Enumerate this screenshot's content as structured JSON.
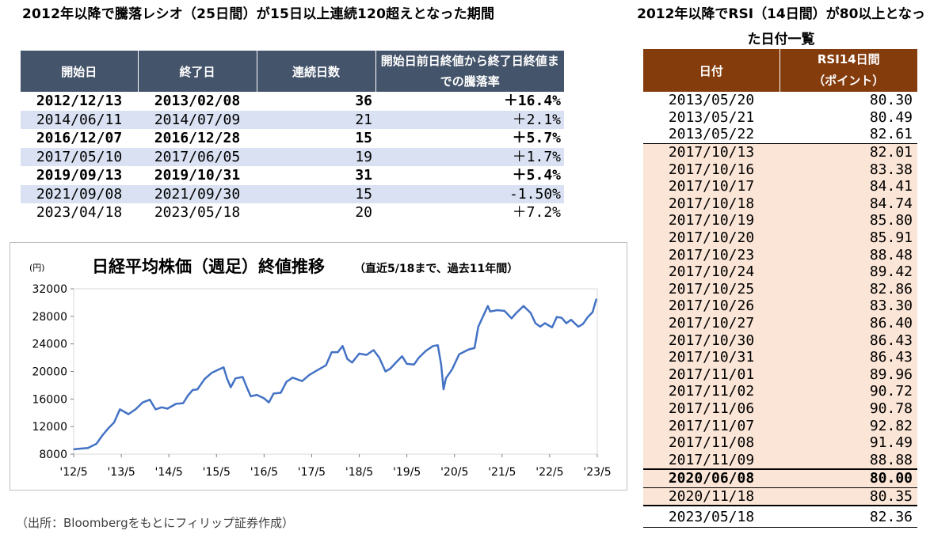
{
  "left_title": "2012年以降で騰落レシオ（25日間）が15日以上連続120超えとなった期間",
  "streak_table": {
    "headers": [
      "開始日",
      "終了日",
      "連続日数",
      "開始日前日終値から終了日終値までの騰落率"
    ],
    "rows": [
      {
        "start": "2012/12/13",
        "end": "2013/02/08",
        "days": "36",
        "change": "＋16.4%",
        "bold": true,
        "shade": false
      },
      {
        "start": "2014/06/11",
        "end": "2014/07/09",
        "days": "21",
        "change": "＋2.1%",
        "bold": false,
        "shade": true
      },
      {
        "start": "2016/12/07",
        "end": "2016/12/28",
        "days": "15",
        "change": "＋5.7%",
        "bold": true,
        "shade": false
      },
      {
        "start": "2017/05/10",
        "end": "2017/06/05",
        "days": "19",
        "change": "＋1.7%",
        "bold": false,
        "shade": true
      },
      {
        "start": "2019/09/13",
        "end": "2019/10/31",
        "days": "31",
        "change": "＋5.4%",
        "bold": true,
        "shade": false
      },
      {
        "start": "2021/09/08",
        "end": "2021/09/30",
        "days": "15",
        "change": "-1.50%",
        "bold": false,
        "shade": true
      },
      {
        "start": "2023/04/18",
        "end": "2023/05/18",
        "days": "20",
        "change": "＋7.2%",
        "bold": false,
        "shade": false
      }
    ]
  },
  "chart_data": {
    "type": "line",
    "title": "日経平均株価（週足）終値推移",
    "subtitle": "（直近5/18まで、過去11年間）",
    "ylabel": "(円)",
    "ylim": [
      8000,
      32000
    ],
    "yticks": [
      "8000",
      "12000",
      "16000",
      "20000",
      "24000",
      "28000",
      "32000"
    ],
    "xticks": [
      "'12/5",
      "'13/5",
      "'14/5",
      "'15/5",
      "'16/5",
      "'17/5",
      "'18/5",
      "'19/5",
      "'20/5",
      "'21/5",
      "'22/5",
      "'23/5"
    ],
    "x": [
      2012.4,
      2012.55,
      2012.7,
      2012.88,
      2013.0,
      2013.12,
      2013.25,
      2013.37,
      2013.45,
      2013.55,
      2013.7,
      2013.85,
      2014.0,
      2014.12,
      2014.25,
      2014.37,
      2014.55,
      2014.7,
      2014.8,
      2014.9,
      2015.0,
      2015.15,
      2015.3,
      2015.45,
      2015.55,
      2015.62,
      2015.7,
      2015.8,
      2015.95,
      2016.05,
      2016.12,
      2016.25,
      2016.4,
      2016.5,
      2016.6,
      2016.75,
      2016.87,
      2017.0,
      2017.2,
      2017.35,
      2017.5,
      2017.7,
      2017.82,
      2017.95,
      2018.05,
      2018.15,
      2018.25,
      2018.4,
      2018.55,
      2018.7,
      2018.82,
      2018.95,
      2019.05,
      2019.2,
      2019.3,
      2019.4,
      2019.55,
      2019.65,
      2019.8,
      2019.95,
      2020.05,
      2020.12,
      2020.17,
      2020.22,
      2020.35,
      2020.5,
      2020.7,
      2020.82,
      2020.9,
      2021.0,
      2021.1,
      2021.15,
      2021.3,
      2021.45,
      2021.6,
      2021.7,
      2021.85,
      2022.0,
      2022.1,
      2022.2,
      2022.3,
      2022.45,
      2022.55,
      2022.65,
      2022.75,
      2022.85,
      2023.0,
      2023.1,
      2023.2,
      2023.3,
      2023.38
    ],
    "values": [
      8700,
      8800,
      8900,
      9500,
      10700,
      11700,
      12600,
      14500,
      14200,
      13800,
      14500,
      15500,
      15900,
      14500,
      14800,
      14600,
      15300,
      15400,
      16500,
      17300,
      17400,
      18900,
      19800,
      20300,
      20600,
      19000,
      17700,
      19000,
      19200,
      17500,
      16400,
      16600,
      16100,
      15500,
      16800,
      16900,
      18500,
      19100,
      18600,
      19500,
      20100,
      20900,
      22800,
      22800,
      23700,
      21800,
      21300,
      22600,
      22400,
      23100,
      22000,
      20000,
      20400,
      21500,
      22200,
      21100,
      21000,
      22000,
      23000,
      23700,
      23800,
      21000,
      17400,
      19000,
      20300,
      22500,
      23200,
      23400,
      26500,
      28000,
      29500,
      28700,
      28900,
      28800,
      27700,
      28500,
      29500,
      28500,
      27000,
      26500,
      27000,
      26400,
      27900,
      27800,
      27000,
      27500,
      26500,
      26900,
      27900,
      28600,
      30500
    ]
  },
  "source_note": "（出所：Bloombergをもとにフィリップ証券作成）",
  "right_title": "2012年以降でRSI（14日間）が80以上となった日付一覧",
  "rsi_table": {
    "headers": {
      "date": "日付",
      "rsi_line1": "RSI14日間",
      "rsi_line2": "（ポイント）"
    },
    "rows": [
      {
        "date": "2013/05/20",
        "value": "80.30"
      },
      {
        "date": "2013/05/21",
        "value": "80.49"
      },
      {
        "date": "2013/05/22",
        "value": "82.61"
      },
      {
        "date": "2017/10/13",
        "value": "82.01"
      },
      {
        "date": "2017/10/16",
        "value": "83.38"
      },
      {
        "date": "2017/10/17",
        "value": "84.41"
      },
      {
        "date": "2017/10/18",
        "value": "84.74"
      },
      {
        "date": "2017/10/19",
        "value": "85.80"
      },
      {
        "date": "2017/10/20",
        "value": "85.91"
      },
      {
        "date": "2017/10/23",
        "value": "88.48"
      },
      {
        "date": "2017/10/24",
        "value": "89.42"
      },
      {
        "date": "2017/10/25",
        "value": "82.86"
      },
      {
        "date": "2017/10/26",
        "value": "83.30"
      },
      {
        "date": "2017/10/27",
        "value": "86.40"
      },
      {
        "date": "2017/10/30",
        "value": "86.43"
      },
      {
        "date": "2017/10/31",
        "value": "86.43"
      },
      {
        "date": "2017/11/01",
        "value": "89.96"
      },
      {
        "date": "2017/11/02",
        "value": "90.72"
      },
      {
        "date": "2017/11/06",
        "value": "90.78"
      },
      {
        "date": "2017/11/07",
        "value": "92.82"
      },
      {
        "date": "2017/11/08",
        "value": "91.49"
      },
      {
        "date": "2017/11/09",
        "value": "88.88"
      },
      {
        "date": "2020/06/08",
        "value": "80.00"
      },
      {
        "date": "2020/11/18",
        "value": "80.35"
      },
      {
        "date": "2023/05/18",
        "value": "82.36"
      }
    ]
  },
  "colors": {
    "line": "#4472c4",
    "streak_header": "#44546a",
    "rsi_header": "#843c0c",
    "streak_shade": "#d9e1f2",
    "rsi_shade": "#fbe5d6"
  }
}
